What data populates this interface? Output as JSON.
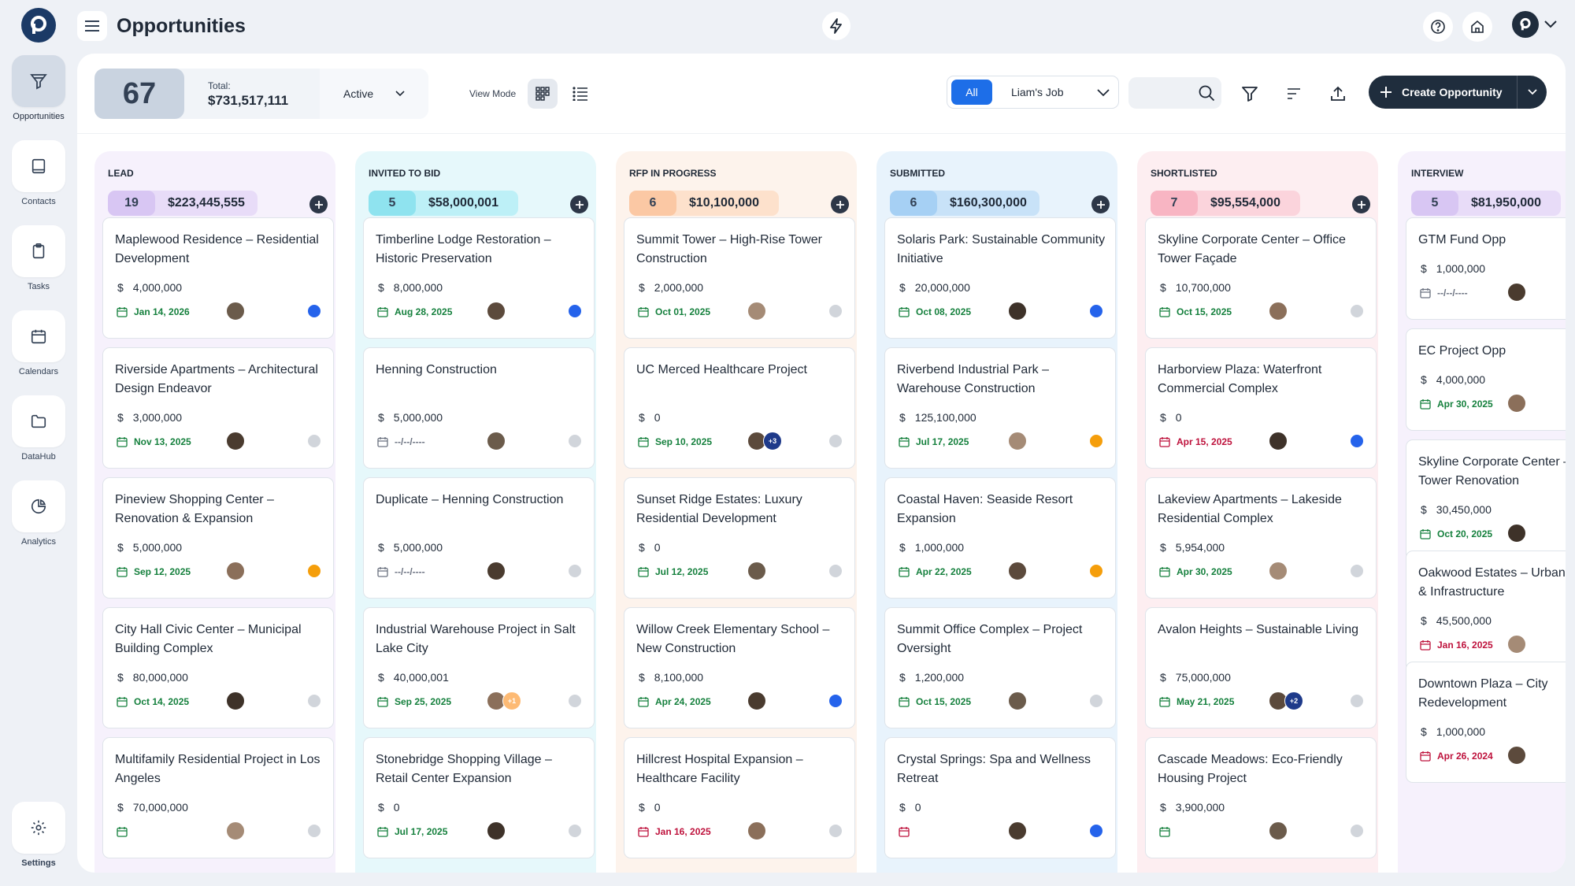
{
  "sidebar": {
    "items": [
      {
        "label": "Opportunities",
        "icon": "funnel-icon",
        "active": true
      },
      {
        "label": "Contacts",
        "icon": "book-icon"
      },
      {
        "label": "Tasks",
        "icon": "clipboard-icon"
      },
      {
        "label": "Calendars",
        "icon": "calendar-icon"
      },
      {
        "label": "DataHub",
        "icon": "folder-icon"
      },
      {
        "label": "Analytics",
        "icon": "pie-chart-icon"
      }
    ],
    "settings_label": "Settings"
  },
  "header": {
    "title": "Opportunities"
  },
  "toolbar": {
    "count": "67",
    "total_label": "Total:",
    "total_value": "$731,517,111",
    "status": "Active",
    "view_mode_label": "View Mode",
    "scope_all": "All",
    "scope_job": "Liam's Job",
    "create_label": "Create Opportunity"
  },
  "colors": {
    "accent": "#1d6ee8",
    "dark": "#1f2d3d",
    "date_green": "#15803d",
    "date_red": "#be123c"
  },
  "columns": [
    {
      "name": "LEAD",
      "count": "19",
      "amount": "$223,445,555",
      "bg": "#f6f1fc",
      "pill": "#e8dcf8",
      "count_bg": "#d8c6f3",
      "cards": [
        {
          "title": "Maplewood Residence – Residential Development",
          "value": "4,000,000",
          "date": "Jan 14, 2026",
          "date_color": "green",
          "badge": "blue"
        },
        {
          "title": "Riverside Apartments – Architectural Design Endeavor",
          "value": "3,000,000",
          "date": "Nov 13, 2025",
          "date_color": "green",
          "badge": "gray"
        },
        {
          "title": "Pineview Shopping Center – Renovation & Expansion",
          "value": "5,000,000",
          "date": "Sep 12, 2025",
          "date_color": "green",
          "badge": "orange"
        },
        {
          "title": "City Hall Civic Center – Municipal Building Complex",
          "value": "80,000,000",
          "date": "Oct 14, 2025",
          "date_color": "green",
          "badge": "gray"
        },
        {
          "title": "Multifamily Residential Project in Los Angeles",
          "value": "70,000,000",
          "date": "",
          "date_color": "green",
          "badge": "gray"
        }
      ]
    },
    {
      "name": "INVITED TO BID",
      "count": "5",
      "amount": "$58,000,001",
      "bg": "#e6f8fb",
      "pill": "#bdf0f7",
      "count_bg": "#8fe3ef",
      "cards": [
        {
          "title": "Timberline Lodge Restoration – Historic Preservation",
          "value": "8,000,000",
          "date": "Aug 28, 2025",
          "date_color": "green",
          "badge": "blue"
        },
        {
          "title": "Henning Construction",
          "value": "5,000,000",
          "date": "--/--/----",
          "date_color": "gray",
          "badge": "gray"
        },
        {
          "title": "Duplicate – Henning Construction",
          "value": "5,000,000",
          "date": "--/--/----",
          "date_color": "gray",
          "badge": "gray"
        },
        {
          "title": "Industrial Warehouse Project in Salt Lake City",
          "value": "40,000,001",
          "date": "Sep 25, 2025",
          "date_color": "green",
          "badge": "gray",
          "extra": "+1"
        },
        {
          "title": "Stonebridge Shopping Village – Retail Center Expansion",
          "value": "0",
          "date": "Jul 17, 2025",
          "date_color": "green",
          "badge": "gray"
        }
      ]
    },
    {
      "name": "RFP IN PROGRESS",
      "count": "6",
      "amount": "$10,100,000",
      "bg": "#fdf3ec",
      "pill": "#fde1cc",
      "count_bg": "#fbc8a4",
      "cards": [
        {
          "title": "Summit Tower – High-Rise Tower Construction",
          "value": "2,000,000",
          "date": "Oct 01, 2025",
          "date_color": "green",
          "badge": "gray"
        },
        {
          "title": "UC Merced Healthcare Project",
          "value": "0",
          "date": "Sep 10, 2025",
          "date_color": "green",
          "badge": "gray",
          "extra": "+3"
        },
        {
          "title": "Sunset Ridge Estates: Luxury Residential Development",
          "value": "0",
          "date": "Jul 12, 2025",
          "date_color": "green",
          "badge": "gray"
        },
        {
          "title": "Willow Creek Elementary School – New Construction",
          "value": "8,100,000",
          "date": "Apr 24, 2025",
          "date_color": "green",
          "badge": "blue"
        },
        {
          "title": "Hillcrest Hospital Expansion – Healthcare Facility",
          "value": "0",
          "date": "Jan 16, 2025",
          "date_color": "red",
          "badge": "gray"
        }
      ]
    },
    {
      "name": "SUBMITTED",
      "count": "6",
      "amount": "$160,300,000",
      "bg": "#e8f3fc",
      "pill": "#c8e2f8",
      "count_bg": "#a6d0f4",
      "cards": [
        {
          "title": "Solaris Park: Sustainable Community Initiative",
          "value": "20,000,000",
          "date": "Oct 08, 2025",
          "date_color": "green",
          "badge": "blue"
        },
        {
          "title": "Riverbend Industrial Park – Warehouse Construction",
          "value": "125,100,000",
          "date": "Jul 17, 2025",
          "date_color": "green",
          "badge": "orange"
        },
        {
          "title": "Coastal Haven: Seaside Resort Expansion",
          "value": "1,000,000",
          "date": "Apr 22, 2025",
          "date_color": "green",
          "badge": "orange"
        },
        {
          "title": "Summit Office Complex – Project Oversight",
          "value": "1,200,000",
          "date": "Oct 15, 2025",
          "date_color": "green",
          "badge": "gray"
        },
        {
          "title": "Crystal Springs: Spa and Wellness Retreat",
          "value": "0",
          "date": "",
          "date_color": "red",
          "badge": "blue"
        }
      ]
    },
    {
      "name": "SHORTLISTED",
      "count": "7",
      "amount": "$95,554,000",
      "bg": "#fdeef1",
      "pill": "#fbd4dc",
      "count_bg": "#f8b5c3",
      "cards": [
        {
          "title": "Skyline Corporate Center – Office Tower Façade",
          "value": "10,700,000",
          "date": "Oct 15, 2025",
          "date_color": "green",
          "badge": "gray"
        },
        {
          "title": "Harborview Plaza: Waterfront Commercial Complex",
          "value": "0",
          "date": "Apr 15, 2025",
          "date_color": "red",
          "badge": "blue"
        },
        {
          "title": "Lakeview Apartments – Lakeside Residential Complex",
          "value": "5,954,000",
          "date": "Apr 30, 2025",
          "date_color": "green",
          "badge": "gray"
        },
        {
          "title": "Avalon Heights – Sustainable Living",
          "value": "75,000,000",
          "date": "May 21, 2025",
          "date_color": "green",
          "badge": "gray",
          "extra": "+2"
        },
        {
          "title": "Cascade Meadows: Eco-Friendly Housing Project",
          "value": "3,900,000",
          "date": "",
          "date_color": "green",
          "badge": "gray"
        }
      ]
    },
    {
      "name": "INTERVIEW",
      "count": "5",
      "amount": "$81,950,000",
      "bg": "#f6f1fc",
      "pill": "#e8dcf8",
      "count_bg": "#d8c6f3",
      "cards": [
        {
          "title": "GTM Fund Opp",
          "value": "1,000,000",
          "date": "--/--/----",
          "date_color": "gray"
        },
        {
          "title": "EC Project Opp",
          "value": "4,000,000",
          "date": "Apr 30, 2025",
          "date_color": "green"
        },
        {
          "title": "Skyline Corporate Center – Office Tower Renovation",
          "value": "30,450,000",
          "date": "Oct 20, 2025",
          "date_color": "green"
        },
        {
          "title": "Oakwood Estates – Urban Planning & Infrastructure",
          "value": "45,500,000",
          "date": "Jan 16, 2025",
          "date_color": "red"
        },
        {
          "title": "Downtown Plaza – City Redevelopment",
          "value": "1,000,000",
          "date": "Apr 26, 2024",
          "date_color": "red"
        }
      ]
    }
  ]
}
